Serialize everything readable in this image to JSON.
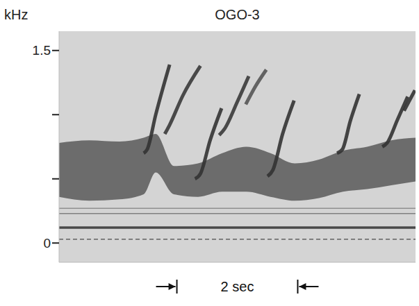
{
  "chart_data": {
    "type": "spectrogram",
    "title": "OGO-3",
    "y_label": "kHz",
    "xlim": [
      0,
      5.9
    ],
    "ylim": [
      -0.15,
      1.65
    ],
    "yticks": [
      0,
      {
        "value": 0.5,
        "label": null
      },
      {
        "value": 1,
        "label": null
      },
      1.5
    ],
    "tick_labels": "y",
    "band": {
      "x": [
        0,
        0.5,
        1,
        1.4,
        1.6,
        1.9,
        2.3,
        2.7,
        3.1,
        3.5,
        3.9,
        4.3,
        4.7,
        5.1,
        5.5,
        5.9
      ],
      "low": [
        0.36,
        0.33,
        0.34,
        0.38,
        0.55,
        0.38,
        0.36,
        0.4,
        0.4,
        0.36,
        0.33,
        0.35,
        0.4,
        0.42,
        0.45,
        0.48
      ],
      "high": [
        0.78,
        0.8,
        0.79,
        0.82,
        0.85,
        0.6,
        0.62,
        0.7,
        0.75,
        0.7,
        0.62,
        0.65,
        0.72,
        0.75,
        0.8,
        0.82
      ],
      "color": "#4a4a4a"
    },
    "series": [
      {
        "x": [
          1.4,
          1.46,
          1.6,
          1.83
        ],
        "values": [
          0.7,
          0.73,
          1.0,
          1.39
        ],
        "color": "#333333",
        "line_style": "solid"
      },
      {
        "x": [
          1.75,
          1.83,
          2.05,
          2.34
        ],
        "values": [
          0.85,
          0.92,
          1.15,
          1.38
        ],
        "color": "#3a3a3a",
        "line_style": "solid"
      },
      {
        "x": [
          2.25,
          2.34,
          2.5,
          2.69
        ],
        "values": [
          0.5,
          0.54,
          0.8,
          1.05
        ],
        "color": "#333333",
        "line_style": "solid"
      },
      {
        "x": [
          2.65,
          2.74,
          2.95,
          3.14
        ],
        "values": [
          0.84,
          0.89,
          1.1,
          1.3
        ],
        "color": "#3a3a3a",
        "line_style": "solid"
      },
      {
        "x": [
          3.09,
          3.25,
          3.43
        ],
        "values": [
          1.08,
          1.22,
          1.35
        ],
        "color": "#555555",
        "line_style": "solid"
      },
      {
        "x": [
          3.45,
          3.54,
          3.7,
          3.89
        ],
        "values": [
          0.52,
          0.57,
          0.85,
          1.11
        ],
        "color": "#333333",
        "line_style": "solid"
      },
      {
        "x": [
          4.6,
          4.69,
          4.82,
          4.97
        ],
        "values": [
          0.7,
          0.73,
          0.95,
          1.16
        ],
        "color": "#333333",
        "line_style": "solid"
      },
      {
        "x": [
          5.35,
          5.43,
          5.6,
          5.77
        ],
        "values": [
          0.75,
          0.78,
          0.96,
          1.14
        ],
        "color": "#333333",
        "line_style": "solid"
      },
      {
        "x": [
          5.71,
          5.8,
          5.89
        ],
        "values": [
          1.03,
          1.11,
          1.19
        ],
        "color": "#333333",
        "line_style": "solid"
      },
      {
        "x": [
          0,
          5.9
        ],
        "values": [
          0.27,
          0.27
        ],
        "color": "#888888",
        "line_style": "solid"
      },
      {
        "x": [
          0,
          5.9
        ],
        "values": [
          0.23,
          0.23
        ],
        "color": "#777777",
        "line_style": "solid"
      },
      {
        "x": [
          0,
          5.9
        ],
        "values": [
          0.12,
          0.12
        ],
        "color": "#3a3a3a",
        "line_style": "thick"
      },
      {
        "x": [
          0,
          5.9
        ],
        "values": [
          0.03,
          0.03
        ],
        "color": "#555555",
        "line_style": "dashed"
      }
    ],
    "scale_bar": {
      "label": "2 sec",
      "length": 2
    }
  }
}
